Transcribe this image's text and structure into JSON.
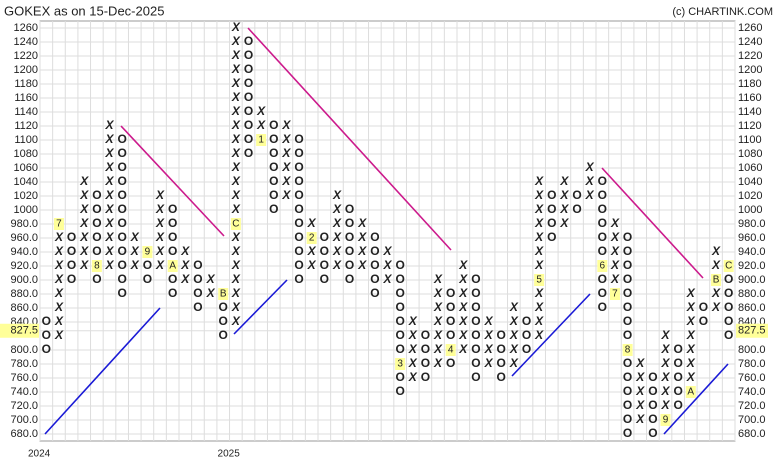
{
  "chart_data": {
    "type": "point_and_figure",
    "title": "GOKEX as on 15-Dec-2025",
    "source": "(c) CHARTINK.COM",
    "ylim": [
      670,
      1270
    ],
    "yticks": [
      {
        "value": 680,
        "label": "680.0"
      },
      {
        "value": 700,
        "label": "700.0"
      },
      {
        "value": 720,
        "label": "720.0"
      },
      {
        "value": 740,
        "label": "740.0"
      },
      {
        "value": 760,
        "label": "760.0"
      },
      {
        "value": 780,
        "label": "780.0"
      },
      {
        "value": 800,
        "label": "800.0"
      },
      {
        "value": 840,
        "label": "840.0"
      },
      {
        "value": 860,
        "label": "860.0"
      },
      {
        "value": 880,
        "label": "880.0"
      },
      {
        "value": 900,
        "label": "900.0"
      },
      {
        "value": 920,
        "label": "920.0"
      },
      {
        "value": 940,
        "label": "940.0"
      },
      {
        "value": 960,
        "label": "960.0"
      },
      {
        "value": 980,
        "label": "980.0"
      },
      1000,
      1020,
      1040,
      1060,
      1080,
      1100,
      1120,
      1140,
      1160,
      1180,
      1200,
      1220,
      1240,
      1260
    ],
    "last": 827.5,
    "grid": true,
    "x_color": "#2e7d32",
    "o_color": "#e53935",
    "columns": [
      {
        "type": "O",
        "low": 800,
        "high": 840,
        "year": "2024"
      },
      {
        "type": "X",
        "low": 820,
        "high": 980,
        "marks": [
          {
            "value": 980,
            "label": "7"
          }
        ]
      },
      {
        "type": "O",
        "low": 900,
        "high": 960
      },
      {
        "type": "X",
        "low": 920,
        "high": 1040
      },
      {
        "type": "O",
        "low": 900,
        "high": 1020,
        "marks": [
          {
            "value": 920,
            "label": "8"
          }
        ]
      },
      {
        "type": "X",
        "low": 920,
        "high": 1120
      },
      {
        "type": "O",
        "low": 880,
        "high": 1100
      },
      {
        "type": "X",
        "low": 920,
        "high": 960
      },
      {
        "type": "O",
        "low": 900,
        "high": 940,
        "marks": [
          {
            "value": 940,
            "label": "9"
          }
        ]
      },
      {
        "type": "X",
        "low": 920,
        "high": 1020
      },
      {
        "type": "O",
        "low": 880,
        "high": 1000,
        "marks": [
          {
            "value": 920,
            "label": "A"
          }
        ]
      },
      {
        "type": "X",
        "low": 900,
        "high": 940
      },
      {
        "type": "O",
        "low": 860,
        "high": 920
      },
      {
        "type": "X",
        "low": 880,
        "high": 900
      },
      {
        "type": "O",
        "low": 820,
        "high": 880,
        "marks": [
          {
            "value": 880,
            "label": "B"
          }
        ]
      },
      {
        "type": "X",
        "low": 840,
        "high": 1260,
        "marks": [
          {
            "value": 980,
            "label": "C"
          }
        ],
        "year": "2025"
      },
      {
        "type": "O",
        "low": 1080,
        "high": 1240
      },
      {
        "type": "X",
        "low": 1100,
        "high": 1140,
        "marks": [
          {
            "value": 1100,
            "label": "1"
          }
        ]
      },
      {
        "type": "O",
        "low": 1000,
        "high": 1120
      },
      {
        "type": "X",
        "low": 1020,
        "high": 1120
      },
      {
        "type": "O",
        "low": 900,
        "high": 1100
      },
      {
        "type": "X",
        "low": 920,
        "high": 980,
        "marks": [
          {
            "value": 960,
            "label": "2"
          }
        ]
      },
      {
        "type": "O",
        "low": 900,
        "high": 960
      },
      {
        "type": "X",
        "low": 920,
        "high": 1020
      },
      {
        "type": "O",
        "low": 900,
        "high": 1000
      },
      {
        "type": "X",
        "low": 920,
        "high": 980
      },
      {
        "type": "O",
        "low": 880,
        "high": 960
      },
      {
        "type": "X",
        "low": 900,
        "high": 940
      },
      {
        "type": "O",
        "low": 740,
        "high": 920,
        "marks": [
          {
            "value": 780,
            "label": "3"
          }
        ]
      },
      {
        "type": "X",
        "low": 760,
        "high": 840
      },
      {
        "type": "O",
        "low": 760,
        "high": 820
      },
      {
        "type": "X",
        "low": 780,
        "high": 900
      },
      {
        "type": "O",
        "low": 780,
        "high": 880,
        "marks": [
          {
            "value": 800,
            "label": "4"
          }
        ]
      },
      {
        "type": "X",
        "low": 800,
        "high": 920
      },
      {
        "type": "O",
        "low": 760,
        "high": 900
      },
      {
        "type": "X",
        "low": 780,
        "high": 840
      },
      {
        "type": "O",
        "low": 760,
        "high": 820
      },
      {
        "type": "X",
        "low": 780,
        "high": 860
      },
      {
        "type": "O",
        "low": 800,
        "high": 840
      },
      {
        "type": "X",
        "low": 820,
        "high": 1040,
        "marks": [
          {
            "value": 900,
            "label": "5"
          }
        ]
      },
      {
        "type": "O",
        "low": 960,
        "high": 1020
      },
      {
        "type": "X",
        "low": 980,
        "high": 1040
      },
      {
        "type": "O",
        "low": 1000,
        "high": 1020
      },
      {
        "type": "X",
        "low": 1020,
        "high": 1060
      },
      {
        "type": "O",
        "low": 860,
        "high": 1040,
        "marks": [
          {
            "value": 920,
            "label": "6"
          }
        ]
      },
      {
        "type": "X",
        "low": 880,
        "high": 980,
        "marks": [
          {
            "value": 880,
            "label": "7"
          }
        ]
      },
      {
        "type": "O",
        "low": 680,
        "high": 960,
        "marks": [
          {
            "value": 800,
            "label": "8"
          }
        ]
      },
      {
        "type": "X",
        "low": 700,
        "high": 780
      },
      {
        "type": "O",
        "low": 680,
        "high": 760
      },
      {
        "type": "X",
        "low": 700,
        "high": 820,
        "marks": [
          {
            "value": 700,
            "label": "9"
          }
        ]
      },
      {
        "type": "O",
        "low": 720,
        "high": 800
      },
      {
        "type": "X",
        "low": 740,
        "high": 880,
        "marks": [
          {
            "value": 740,
            "label": "A"
          }
        ]
      },
      {
        "type": "O",
        "low": 840,
        "high": 860
      },
      {
        "type": "X",
        "low": 860,
        "high": 940,
        "marks": [
          {
            "value": 900,
            "label": "B"
          }
        ]
      },
      {
        "type": "O",
        "low": 820,
        "high": 920,
        "marks": [
          {
            "value": 920,
            "label": "C"
          }
        ]
      }
    ]
  }
}
